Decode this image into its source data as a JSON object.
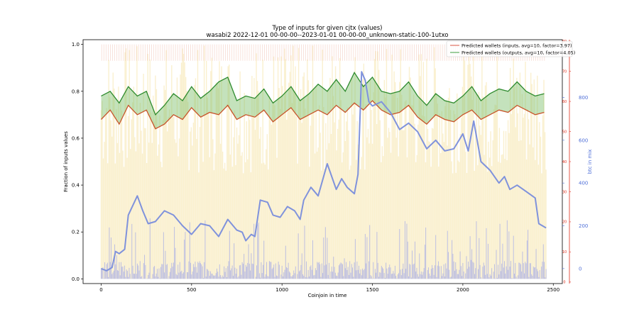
{
  "chart_data": {
    "type": "line",
    "title": "Type of inputs for given cjtx (values)",
    "subtitle": "wasabi2 2022-12-01 00-00-00--2023-01-01 00-00-00_unknown-static-100-1utxo",
    "xlabel": "Coinjoin in time",
    "ylabel": "Fraction of inputs values",
    "y2label": "btc in mix",
    "xlim": [
      -100,
      2550
    ],
    "ylim": [
      -0.02,
      1.02
    ],
    "y_red_lim": [
      -0.5,
      80.5
    ],
    "y2lim": [
      -70,
      1070
    ],
    "x_ticks": [
      "0",
      "500",
      "1000",
      "1500",
      "2000",
      "2500"
    ],
    "y_ticks": [
      "0.0",
      "0.2",
      "0.4",
      "0.6",
      "0.8",
      "1.0"
    ],
    "y_red_ticks": [
      "0",
      "10",
      "20",
      "30",
      "40",
      "50",
      "60",
      "70",
      "80"
    ],
    "y2_ticks": [
      "0",
      "200",
      "400",
      "600",
      "800"
    ],
    "legend_position": "top-right",
    "legend": [
      "Predicted wallets (inputs, avg=10, factor=3.97)",
      "Predicted wallets (outputs, avg=10, factor=4.05)"
    ],
    "colors": {
      "inputs": "#c8542a",
      "outputs": "#2e8b2e",
      "band": "#7cbf6a",
      "btc_mix": "#7f92dc",
      "background_bars": "#f6e4a8",
      "blue_bars": "#7f8cf0",
      "red_axis": "#e0301e",
      "blue_axis": "#4f6fd8"
    },
    "series": [
      {
        "name": "Predicted wallets (inputs, avg=10, factor=3.97)",
        "x": [
          0,
          50,
          100,
          150,
          200,
          250,
          300,
          350,
          400,
          450,
          500,
          550,
          600,
          650,
          700,
          750,
          800,
          850,
          900,
          950,
          1000,
          1050,
          1100,
          1150,
          1200,
          1250,
          1300,
          1350,
          1400,
          1450,
          1500,
          1550,
          1600,
          1650,
          1700,
          1750,
          1800,
          1850,
          1900,
          1950,
          2000,
          2050,
          2100,
          2150,
          2200,
          2250,
          2300,
          2350,
          2400,
          2450
        ],
        "y": [
          0.68,
          0.72,
          0.66,
          0.74,
          0.7,
          0.72,
          0.64,
          0.66,
          0.7,
          0.68,
          0.73,
          0.69,
          0.71,
          0.7,
          0.74,
          0.68,
          0.7,
          0.69,
          0.72,
          0.67,
          0.7,
          0.73,
          0.68,
          0.7,
          0.72,
          0.7,
          0.74,
          0.71,
          0.75,
          0.72,
          0.76,
          0.72,
          0.7,
          0.71,
          0.74,
          0.69,
          0.66,
          0.7,
          0.68,
          0.67,
          0.7,
          0.72,
          0.68,
          0.7,
          0.72,
          0.71,
          0.74,
          0.72,
          0.7,
          0.71
        ]
      },
      {
        "name": "Predicted wallets (outputs, avg=10, factor=4.05)",
        "x": [
          0,
          50,
          100,
          150,
          200,
          250,
          300,
          350,
          400,
          450,
          500,
          550,
          600,
          650,
          700,
          750,
          800,
          850,
          900,
          950,
          1000,
          1050,
          1100,
          1150,
          1200,
          1250,
          1300,
          1350,
          1400,
          1450,
          1500,
          1550,
          1600,
          1650,
          1700,
          1750,
          1800,
          1850,
          1900,
          1950,
          2000,
          2050,
          2100,
          2150,
          2200,
          2250,
          2300,
          2350,
          2400,
          2450
        ],
        "y": [
          0.78,
          0.8,
          0.75,
          0.82,
          0.78,
          0.8,
          0.7,
          0.74,
          0.79,
          0.76,
          0.82,
          0.77,
          0.8,
          0.84,
          0.86,
          0.76,
          0.78,
          0.77,
          0.81,
          0.75,
          0.78,
          0.82,
          0.76,
          0.79,
          0.83,
          0.8,
          0.85,
          0.8,
          0.88,
          0.82,
          0.86,
          0.8,
          0.79,
          0.8,
          0.84,
          0.78,
          0.74,
          0.79,
          0.76,
          0.75,
          0.78,
          0.82,
          0.76,
          0.79,
          0.81,
          0.8,
          0.84,
          0.8,
          0.78,
          0.79
        ]
      },
      {
        "name": "btc in mix",
        "axis": "right",
        "x": [
          0,
          30,
          60,
          80,
          100,
          130,
          150,
          200,
          230,
          260,
          300,
          350,
          400,
          450,
          500,
          550,
          600,
          650,
          700,
          750,
          780,
          800,
          830,
          850,
          880,
          920,
          950,
          990,
          1030,
          1070,
          1100,
          1120,
          1160,
          1200,
          1250,
          1300,
          1330,
          1360,
          1400,
          1420,
          1440,
          1460,
          1480,
          1500,
          1550,
          1600,
          1650,
          1700,
          1750,
          1800,
          1850,
          1900,
          1950,
          2000,
          2030,
          2060,
          2100,
          2150,
          2200,
          2230,
          2260,
          2300,
          2350,
          2400,
          2420,
          2440,
          2460
        ],
        "y": [
          0,
          -10,
          5,
          80,
          70,
          90,
          250,
          340,
          270,
          210,
          220,
          270,
          250,
          200,
          160,
          210,
          200,
          150,
          230,
          180,
          170,
          130,
          160,
          150,
          320,
          310,
          250,
          240,
          290,
          270,
          230,
          320,
          380,
          340,
          490,
          370,
          420,
          380,
          350,
          440,
          920,
          880,
          780,
          760,
          780,
          730,
          650,
          680,
          640,
          560,
          600,
          550,
          560,
          630,
          550,
          690,
          500,
          460,
          400,
          430,
          370,
          390,
          360,
          330,
          210,
          200,
          190
        ]
      }
    ]
  }
}
